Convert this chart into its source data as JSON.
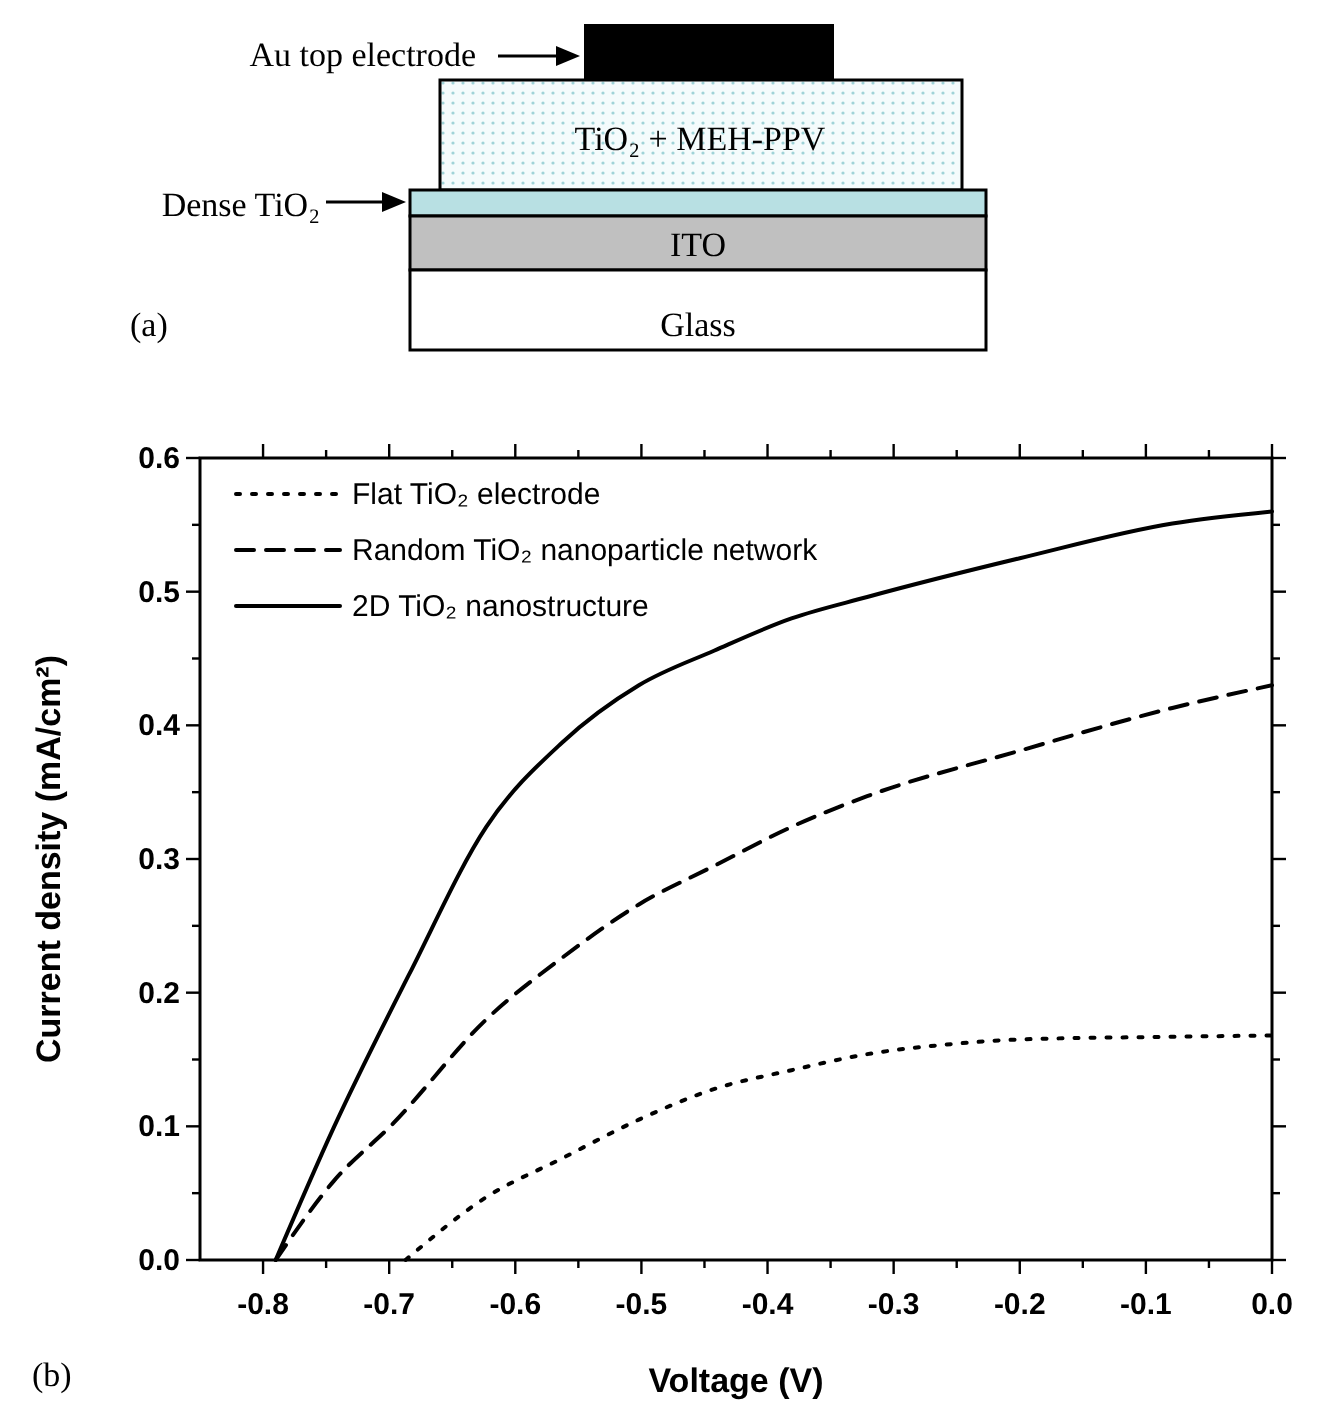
{
  "chart_data": {
    "type": "line",
    "xlabel": "Voltage (V)",
    "ylabel": "Current density (mA/cm²)",
    "xlim": [
      -0.85,
      0
    ],
    "ylim": [
      0,
      0.6
    ],
    "xticks": [
      {
        "value": -0.8,
        "label": "-0.8"
      },
      {
        "value": -0.75,
        "label": null
      },
      {
        "value": -0.7,
        "label": "-0.7"
      },
      {
        "value": -0.65,
        "label": null
      },
      {
        "value": -0.6,
        "label": "-0.6"
      },
      {
        "value": -0.55,
        "label": null
      },
      {
        "value": -0.5,
        "label": "-0.5"
      },
      {
        "value": -0.45,
        "label": null
      },
      {
        "value": -0.4,
        "label": "-0.4"
      },
      {
        "value": -0.35,
        "label": null
      },
      {
        "value": -0.3,
        "label": "-0.3"
      },
      {
        "value": -0.25,
        "label": null
      },
      {
        "value": -0.2,
        "label": "-0.2"
      },
      {
        "value": -0.15,
        "label": null
      },
      {
        "value": -0.1,
        "label": "-0.1"
      },
      {
        "value": -0.05,
        "label": null
      },
      {
        "value": 0,
        "label": "0.0"
      }
    ],
    "yticks": [
      {
        "value": 0,
        "label": "0.0"
      },
      {
        "value": 0.05,
        "label": null
      },
      {
        "value": 0.1,
        "label": "0.1"
      },
      {
        "value": 0.15,
        "label": null
      },
      {
        "value": 0.2,
        "label": "0.2"
      },
      {
        "value": 0.25,
        "label": null
      },
      {
        "value": 0.3,
        "label": "0.3"
      },
      {
        "value": 0.35,
        "label": null
      },
      {
        "value": 0.4,
        "label": "0.4"
      },
      {
        "value": 0.45,
        "label": null
      },
      {
        "value": 0.5,
        "label": "0.5"
      },
      {
        "value": 0.55,
        "label": null
      },
      {
        "value": 0.6,
        "label": "0.6"
      }
    ],
    "series": [
      {
        "name": "Flat TiO₂ electrode",
        "color": "#000000",
        "line_style": "dotted",
        "x": [
          -0.687,
          -0.623,
          -0.563,
          -0.502,
          -0.442,
          -0.381,
          -0.321,
          -0.26,
          -0.2,
          -0.079,
          0
        ],
        "values": [
          0,
          0.047,
          0.076,
          0.105,
          0.128,
          0.142,
          0.154,
          0.161,
          0.165,
          0.167,
          0.168
        ]
      },
      {
        "name": "Random TiO₂ nanoparticle network",
        "color": "#000000",
        "line_style": "dashed",
        "x": [
          -0.79,
          -0.744,
          -0.697,
          -0.623,
          -0.563,
          -0.502,
          -0.442,
          -0.381,
          -0.321,
          -0.2,
          -0.079,
          0
        ],
        "values": [
          0,
          0.059,
          0.102,
          0.18,
          0.226,
          0.266,
          0.295,
          0.324,
          0.347,
          0.381,
          0.413,
          0.43
        ]
      },
      {
        "name": "2D TiO₂ nanostructure",
        "color": "#000000",
        "line_style": "solid",
        "x": [
          -0.79,
          -0.744,
          -0.684,
          -0.623,
          -0.563,
          -0.502,
          -0.442,
          -0.381,
          -0.321,
          -0.2,
          -0.079,
          0
        ],
        "values": [
          0,
          0.099,
          0.214,
          0.324,
          0.387,
          0.43,
          0.456,
          0.48,
          0.496,
          0.525,
          0.551,
          0.56
        ]
      }
    ],
    "legend": "top left",
    "annotations": [
      "Au top electrode",
      "TiO₂ + MEH-PPV",
      "Dense TiO₂",
      "ITO",
      "Glass",
      "(a)",
      "(b)"
    ]
  }
}
